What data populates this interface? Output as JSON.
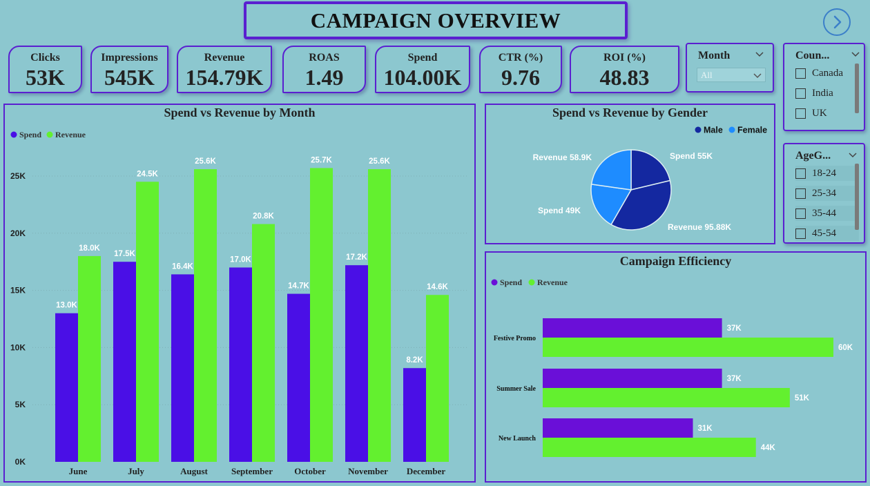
{
  "title": "CAMPAIGN OVERVIEW",
  "kpis": [
    {
      "label": "Clicks",
      "value": "53K"
    },
    {
      "label": "Impressions",
      "value": "545K"
    },
    {
      "label": "Revenue",
      "value": "154.79K"
    },
    {
      "label": "ROAS",
      "value": "1.49"
    },
    {
      "label": "Spend",
      "value": "104.00K"
    },
    {
      "label": "CTR (%)",
      "value": "9.76"
    },
    {
      "label": "ROI (%)",
      "value": "48.83"
    }
  ],
  "slicers": {
    "month": {
      "label": "Month",
      "selected": "All"
    },
    "country": {
      "label": "Coun...",
      "options": [
        "Canada",
        "India",
        "UK"
      ]
    },
    "age": {
      "label": "AgeG...",
      "options": [
        "18-24",
        "25-34",
        "35-44",
        "45-54"
      ]
    }
  },
  "colors": {
    "spend": "#4a0fe6",
    "revenue": "#63f02f",
    "male": "#1428a0",
    "female": "#1e8cff",
    "eff_spend": "#6a0fd8",
    "accent": "#5a1fd0"
  },
  "chart_data": [
    {
      "type": "bar",
      "title": "Spend vs Revenue by Month",
      "categories": [
        "June",
        "July",
        "August",
        "September",
        "October",
        "November",
        "December"
      ],
      "series": [
        {
          "name": "Spend",
          "values": [
            13.0,
            17.5,
            16.4,
            17.0,
            14.7,
            17.2,
            8.2
          ],
          "labels": [
            "13.0K",
            "17.5K",
            "16.4K",
            "17.0K",
            "14.7K",
            "17.2K",
            "8.2K"
          ]
        },
        {
          "name": "Revenue",
          "values": [
            18.0,
            24.5,
            25.6,
            20.8,
            25.7,
            25.6,
            14.6
          ],
          "labels": [
            "18.0K",
            "24.5K",
            "25.6K",
            "20.8K",
            "25.7K",
            "25.6K",
            "14.6K"
          ]
        }
      ],
      "y_ticks": [
        "0K",
        "5K",
        "10K",
        "15K",
        "20K",
        "25K"
      ],
      "ylim": [
        0,
        26
      ],
      "legend": "top-left",
      "grid": true
    },
    {
      "type": "pie",
      "title": "Spend vs Revenue by Gender",
      "legend_entries": [
        "Male",
        "Female"
      ],
      "slices": [
        {
          "label": "Spend 55K",
          "value": 55,
          "gender": "Male"
        },
        {
          "label": "Revenue 95.88K",
          "value": 95.88,
          "gender": "Male"
        },
        {
          "label": "Spend 49K",
          "value": 49,
          "gender": "Female"
        },
        {
          "label": "Revenue 58.9K",
          "value": 58.9,
          "gender": "Female"
        }
      ],
      "legend": "top-right"
    },
    {
      "type": "bar",
      "orientation": "horizontal",
      "title": "Campaign Efficiency",
      "categories": [
        "Festive Promo",
        "Summer Sale",
        "New Launch"
      ],
      "series": [
        {
          "name": "Spend",
          "values": [
            37,
            37,
            31
          ],
          "labels": [
            "37K",
            "37K",
            "31K"
          ]
        },
        {
          "name": "Revenue",
          "values": [
            60,
            51,
            44
          ],
          "labels": [
            "60K",
            "51K",
            "44K"
          ]
        }
      ],
      "xlim": [
        0,
        60
      ],
      "legend": "top-left"
    }
  ]
}
